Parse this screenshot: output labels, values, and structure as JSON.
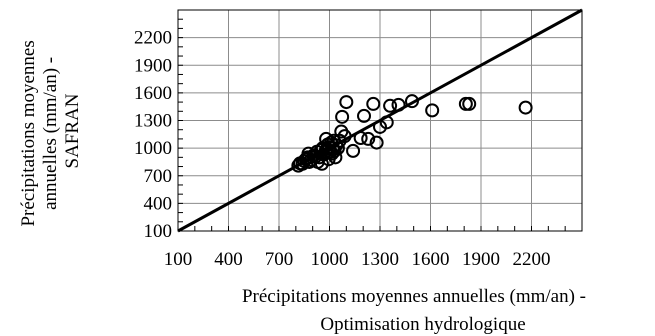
{
  "chart_data": {
    "type": "scatter",
    "xlabel_lines": [
      "Précipitations moyennes annuelles (mm/an) -",
      "Optimisation hydrologique"
    ],
    "ylabel_lines": [
      "Précipitations moyennes",
      "annuelles (mm/an) -",
      "SAFRAN"
    ],
    "xlim": [
      100,
      2500
    ],
    "ylim": [
      100,
      2500
    ],
    "x_ticks": [
      100,
      400,
      700,
      1000,
      1300,
      1600,
      1900,
      2200
    ],
    "x_tick_labels": [
      "100",
      "400",
      "700",
      "1000",
      "1300",
      "1600",
      "1900",
      "2200"
    ],
    "y_ticks": [
      100,
      400,
      700,
      1000,
      1300,
      1600,
      1900,
      2200
    ],
    "y_tick_labels": [
      "100",
      "400",
      "700",
      "1000",
      "1300",
      "1600",
      "1900",
      "2200"
    ],
    "grid": true,
    "legend": "none",
    "reference_line": {
      "type": "1:1",
      "from": [
        100,
        100
      ],
      "to": [
        2500,
        2500
      ]
    },
    "points": [
      {
        "x": 815,
        "y": 810
      },
      {
        "x": 825,
        "y": 835
      },
      {
        "x": 840,
        "y": 830
      },
      {
        "x": 850,
        "y": 860
      },
      {
        "x": 860,
        "y": 880
      },
      {
        "x": 870,
        "y": 900
      },
      {
        "x": 875,
        "y": 940
      },
      {
        "x": 880,
        "y": 850
      },
      {
        "x": 890,
        "y": 870
      },
      {
        "x": 905,
        "y": 920
      },
      {
        "x": 915,
        "y": 905
      },
      {
        "x": 925,
        "y": 960
      },
      {
        "x": 930,
        "y": 850
      },
      {
        "x": 940,
        "y": 900
      },
      {
        "x": 950,
        "y": 980
      },
      {
        "x": 955,
        "y": 830
      },
      {
        "x": 960,
        "y": 1000
      },
      {
        "x": 965,
        "y": 930
      },
      {
        "x": 975,
        "y": 960
      },
      {
        "x": 980,
        "y": 1100
      },
      {
        "x": 985,
        "y": 990
      },
      {
        "x": 990,
        "y": 1040
      },
      {
        "x": 995,
        "y": 880
      },
      {
        "x": 1000,
        "y": 1010
      },
      {
        "x": 1005,
        "y": 960
      },
      {
        "x": 1010,
        "y": 1060
      },
      {
        "x": 1015,
        "y": 940
      },
      {
        "x": 1020,
        "y": 1000
      },
      {
        "x": 1025,
        "y": 1080
      },
      {
        "x": 1030,
        "y": 970
      },
      {
        "x": 1035,
        "y": 900
      },
      {
        "x": 1040,
        "y": 1030
      },
      {
        "x": 1050,
        "y": 1000
      },
      {
        "x": 1060,
        "y": 1080
      },
      {
        "x": 1070,
        "y": 1180
      },
      {
        "x": 1075,
        "y": 1340
      },
      {
        "x": 1090,
        "y": 1130
      },
      {
        "x": 1100,
        "y": 1500
      },
      {
        "x": 1140,
        "y": 970
      },
      {
        "x": 1185,
        "y": 1110
      },
      {
        "x": 1205,
        "y": 1350
      },
      {
        "x": 1230,
        "y": 1100
      },
      {
        "x": 1260,
        "y": 1480
      },
      {
        "x": 1280,
        "y": 1060
      },
      {
        "x": 1300,
        "y": 1230
      },
      {
        "x": 1340,
        "y": 1280
      },
      {
        "x": 1360,
        "y": 1460
      },
      {
        "x": 1410,
        "y": 1470
      },
      {
        "x": 1490,
        "y": 1510
      },
      {
        "x": 1610,
        "y": 1410
      },
      {
        "x": 1810,
        "y": 1480
      },
      {
        "x": 1830,
        "y": 1480
      },
      {
        "x": 2165,
        "y": 1440
      }
    ]
  }
}
